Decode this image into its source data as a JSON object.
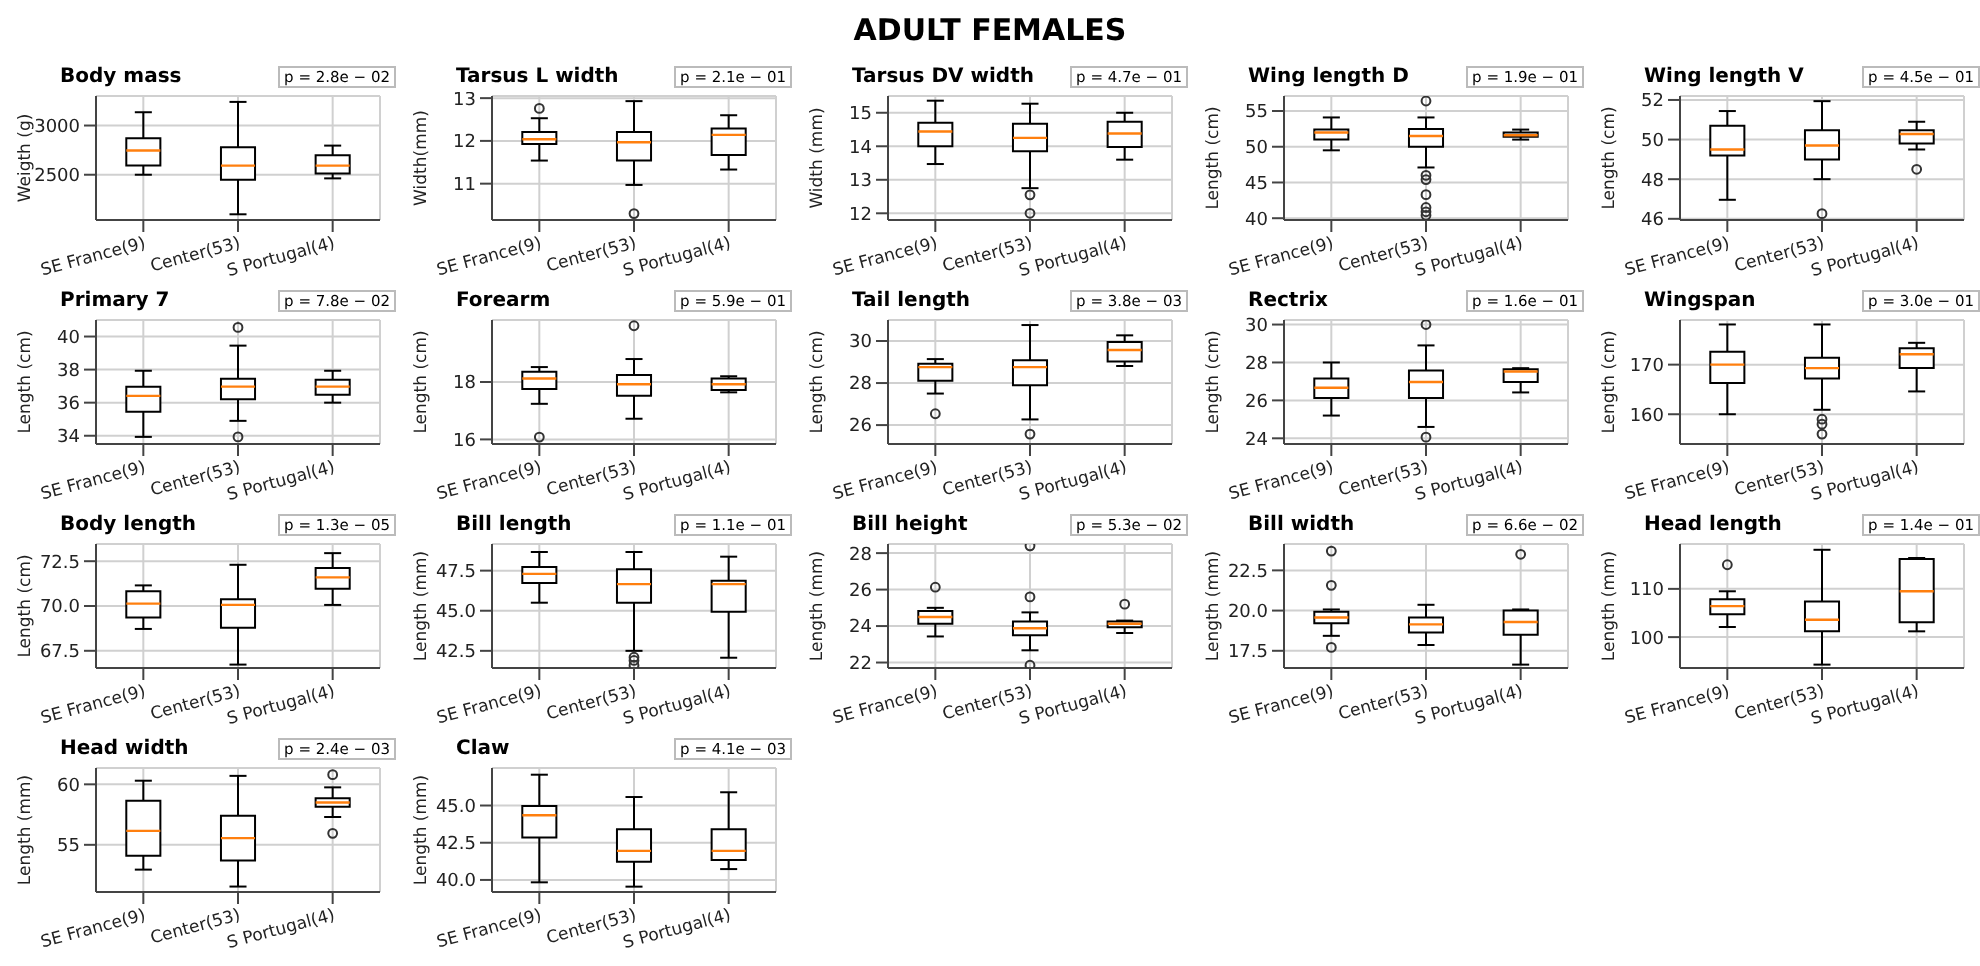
{
  "chart_data": [
    {
      "type": "box",
      "title": "Body mass",
      "ylabel": "Weigth (g)",
      "categories": [
        "SE France(9)",
        "Center(53)",
        "S Portugal(4)"
      ],
      "ylim": [
        2040,
        3300
      ],
      "yticks": [
        2500,
        3000
      ],
      "grid": true,
      "annotations": [
        "p = 2.8e − 02",
        "ADULT FEMALES"
      ],
      "boxes": [
        {
          "low": 2500,
          "q1": 2593,
          "median": 2746,
          "q3": 2870,
          "high": 3135
        },
        {
          "low": 2098,
          "q1": 2450,
          "median": 2593,
          "q3": 2778,
          "high": 3240
        },
        {
          "low": 2463,
          "q1": 2513,
          "median": 2593,
          "q3": 2698,
          "high": 2796
        }
      ]
    },
    {
      "type": "box",
      "title": "Tarsus L width",
      "ylabel": "Width(mm)",
      "categories": [
        "SE France(9)",
        "Center(53)",
        "S Portugal(4)"
      ],
      "ylim": [
        10.15,
        13.05
      ],
      "yticks": [
        11,
        12,
        13
      ],
      "grid": true,
      "annotations": [
        "p = 2.1e − 01"
      ],
      "boxes": [
        {
          "low": 11.54,
          "q1": 11.93,
          "median": 12.04,
          "q3": 12.21,
          "high": 12.53,
          "outliers": [
            12.76
          ]
        },
        {
          "low": 10.97,
          "q1": 11.54,
          "median": 11.97,
          "q3": 12.21,
          "high": 12.93,
          "outliers": [
            10.3
          ]
        },
        {
          "low": 11.33,
          "q1": 11.67,
          "median": 12.14,
          "q3": 12.29,
          "high": 12.6
        }
      ]
    },
    {
      "type": "box",
      "title": "Tarsus DV width",
      "ylabel": "Width (mm)",
      "categories": [
        "SE France(9)",
        "Center(53)",
        "S Portugal(4)"
      ],
      "ylim": [
        11.8,
        15.5
      ],
      "yticks": [
        12,
        13,
        14,
        15
      ],
      "grid": true,
      "annotations": [
        "p = 4.7e − 01"
      ],
      "boxes": [
        {
          "low": 13.47,
          "q1": 14.0,
          "median": 14.44,
          "q3": 14.7,
          "high": 15.36
        },
        {
          "low": 12.75,
          "q1": 13.85,
          "median": 14.25,
          "q3": 14.67,
          "high": 15.27,
          "outliers": [
            12.55,
            12.0
          ]
        },
        {
          "low": 13.6,
          "q1": 13.98,
          "median": 14.38,
          "q3": 14.73,
          "high": 15.0
        }
      ]
    },
    {
      "type": "box",
      "title": "Wing length D",
      "ylabel": "Length (cm)",
      "categories": [
        "SE France(9)",
        "Center(53)",
        "S Portugal(4)"
      ],
      "ylim": [
        39.75,
        57.1
      ],
      "yticks": [
        40,
        45,
        50,
        55
      ],
      "grid": true,
      "annotations": [
        "p = 1.9e − 01"
      ],
      "boxes": [
        {
          "low": 49.5,
          "q1": 51.0,
          "median": 52.0,
          "q3": 52.4,
          "high": 54.1
        },
        {
          "low": 47.1,
          "q1": 50.0,
          "median": 51.5,
          "q3": 52.5,
          "high": 54.1,
          "outliers": [
            56.4,
            46.0,
            45.4,
            43.3,
            41.5,
            40.9,
            40.4
          ]
        },
        {
          "low": 51.0,
          "q1": 51.4,
          "median": 51.6,
          "q3": 52.0,
          "high": 52.4
        }
      ]
    },
    {
      "type": "box",
      "title": "Wing length V",
      "ylabel": "Length (cm)",
      "categories": [
        "SE France(9)",
        "Center(53)",
        "S Portugal(4)"
      ],
      "ylim": [
        45.94,
        52.2
      ],
      "yticks": [
        46,
        48,
        50,
        52
      ],
      "grid": true,
      "annotations": [
        "p = 4.5e − 01"
      ],
      "boxes": [
        {
          "low": 46.96,
          "q1": 49.2,
          "median": 49.5,
          "q3": 50.7,
          "high": 51.44
        },
        {
          "low": 48.0,
          "q1": 49.0,
          "median": 49.7,
          "q3": 50.47,
          "high": 51.94,
          "outliers": [
            46.26
          ]
        },
        {
          "low": 49.5,
          "q1": 49.8,
          "median": 50.28,
          "q3": 50.47,
          "high": 50.9,
          "outliers": [
            48.5
          ]
        }
      ]
    },
    {
      "type": "box",
      "title": "Primary 7",
      "ylabel": "Length (cm)",
      "categories": [
        "SE France(9)",
        "Center(53)",
        "S Portugal(4)"
      ],
      "ylim": [
        33.5,
        41
      ],
      "yticks": [
        34,
        36,
        38,
        40
      ],
      "grid": true,
      "annotations": [
        "p = 7.8e − 02"
      ],
      "boxes": [
        {
          "low": 33.93,
          "q1": 35.45,
          "median": 36.41,
          "q3": 36.97,
          "high": 37.93
        },
        {
          "low": 34.9,
          "q1": 36.2,
          "median": 36.97,
          "q3": 37.45,
          "high": 39.45,
          "outliers": [
            40.55,
            33.93
          ]
        },
        {
          "low": 36.0,
          "q1": 36.48,
          "median": 36.97,
          "q3": 37.38,
          "high": 37.93
        }
      ]
    },
    {
      "type": "box",
      "title": "Forearm",
      "ylabel": "Length (cm)",
      "categories": [
        "SE France(9)",
        "Center(53)",
        "S Portugal(4)"
      ],
      "ylim": [
        15.84,
        20.16
      ],
      "yticks": [
        16,
        18
      ],
      "grid": true,
      "annotations": [
        "p = 5.9e − 01"
      ],
      "boxes": [
        {
          "low": 17.24,
          "q1": 17.76,
          "median": 18.12,
          "q3": 18.36,
          "high": 18.52,
          "outliers": [
            16.08
          ]
        },
        {
          "low": 16.72,
          "q1": 17.52,
          "median": 17.92,
          "q3": 18.24,
          "high": 18.8,
          "outliers": [
            19.96
          ]
        },
        {
          "low": 17.64,
          "q1": 17.72,
          "median": 17.92,
          "q3": 18.12,
          "high": 18.2
        }
      ]
    },
    {
      "type": "box",
      "title": "Tail length",
      "ylabel": "Length (cm)",
      "categories": [
        "SE France(9)",
        "Center(53)",
        "S Portugal(4)"
      ],
      "ylim": [
        25.1,
        31
      ],
      "yticks": [
        26,
        28,
        30
      ],
      "grid": true,
      "annotations": [
        "p = 3.8e − 03"
      ],
      "boxes": [
        {
          "low": 27.5,
          "q1": 28.11,
          "median": 28.76,
          "q3": 28.92,
          "high": 29.14,
          "outliers": [
            26.54
          ]
        },
        {
          "low": 26.27,
          "q1": 27.89,
          "median": 28.76,
          "q3": 29.08,
          "high": 30.76,
          "outliers": [
            25.57
          ]
        },
        {
          "low": 28.81,
          "q1": 29.03,
          "median": 29.57,
          "q3": 29.95,
          "high": 30.27
        }
      ]
    },
    {
      "type": "box",
      "title": "Rectrix",
      "ylabel": "Length (cm)",
      "categories": [
        "SE France(9)",
        "Center(53)",
        "S Portugal(4)"
      ],
      "ylim": [
        23.7,
        30.24
      ],
      "yticks": [
        24,
        26,
        28,
        30
      ],
      "grid": true,
      "annotations": [
        "p = 1.6e − 01"
      ],
      "boxes": [
        {
          "low": 25.2,
          "q1": 26.12,
          "median": 26.67,
          "q3": 27.15,
          "high": 28.0
        },
        {
          "low": 24.6,
          "q1": 26.12,
          "median": 26.97,
          "q3": 27.58,
          "high": 28.9,
          "outliers": [
            30.0,
            24.06
          ]
        },
        {
          "low": 26.42,
          "q1": 26.97,
          "median": 27.52,
          "q3": 27.64,
          "high": 27.7
        }
      ]
    },
    {
      "type": "box",
      "title": "Wingspan",
      "ylabel": "Length (cm)",
      "categories": [
        "SE France(9)",
        "Center(53)",
        "S Portugal(4)"
      ],
      "ylim": [
        154,
        179
      ],
      "yticks": [
        160,
        170
      ],
      "grid": true,
      "annotations": [
        "p = 3.0e − 01"
      ],
      "boxes": [
        {
          "low": 160,
          "q1": 166.3,
          "median": 170,
          "q3": 172.6,
          "high": 178.1
        },
        {
          "low": 160.9,
          "q1": 167.2,
          "median": 169.3,
          "q3": 171.4,
          "high": 178.1,
          "outliers": [
            159,
            158,
            156
          ]
        },
        {
          "low": 164.6,
          "q1": 169.3,
          "median": 172.1,
          "q3": 173.3,
          "high": 174.4
        }
      ]
    },
    {
      "type": "box",
      "title": "Body length",
      "ylabel": "Length (cm)",
      "categories": [
        "SE France(9)",
        "Center(53)",
        "S Portugal(4)"
      ],
      "ylim": [
        66.54,
        73.46
      ],
      "yticks": [
        {
          "value": 67.5,
          "label": "67.5"
        },
        {
          "value": 70,
          "label": "70.0"
        },
        {
          "value": 72.5,
          "label": "72.5"
        }
      ],
      "grid": true,
      "annotations": [
        "p = 1.3e − 05"
      ],
      "boxes": [
        {
          "low": 68.72,
          "q1": 69.36,
          "median": 70.13,
          "q3": 70.83,
          "high": 71.15
        },
        {
          "low": 66.73,
          "q1": 68.78,
          "median": 70.06,
          "q3": 70.38,
          "high": 72.3
        },
        {
          "low": 70.06,
          "q1": 70.96,
          "median": 71.6,
          "q3": 72.12,
          "high": 72.95
        }
      ]
    },
    {
      "type": "box",
      "title": "Bill length",
      "ylabel": "Length (mm)",
      "categories": [
        "SE France(9)",
        "Center(53)",
        "S Portugal(4)"
      ],
      "ylim": [
        41.43,
        49.16
      ],
      "yticks": [
        {
          "value": 42.5,
          "label": "42.5"
        },
        {
          "value": 45,
          "label": "45.0"
        },
        {
          "value": 47.5,
          "label": "47.5"
        }
      ],
      "grid": true,
      "annotations": [
        "p = 1.1e − 01"
      ],
      "boxes": [
        {
          "low": 45.5,
          "q1": 46.73,
          "median": 47.3,
          "q3": 47.73,
          "high": 48.66
        },
        {
          "low": 42.5,
          "q1": 45.5,
          "median": 46.66,
          "q3": 47.59,
          "high": 48.66,
          "outliers": [
            42.1,
            41.9,
            41.6
          ]
        },
        {
          "low": 42.07,
          "q1": 44.93,
          "median": 46.66,
          "q3": 46.87,
          "high": 48.37
        }
      ]
    },
    {
      "type": "box",
      "title": "Bill height",
      "ylabel": "Length (mm)",
      "categories": [
        "SE France(9)",
        "Center(53)",
        "S Portugal(4)"
      ],
      "ylim": [
        21.7,
        28.5
      ],
      "yticks": [
        22,
        24,
        26,
        28
      ],
      "grid": true,
      "annotations": [
        "p = 5.3e − 02"
      ],
      "boxes": [
        {
          "low": 23.43,
          "q1": 24.13,
          "median": 24.5,
          "q3": 24.82,
          "high": 25.0,
          "outliers": [
            26.13
          ]
        },
        {
          "low": 22.67,
          "q1": 23.5,
          "median": 23.88,
          "q3": 24.25,
          "high": 24.75,
          "outliers": [
            28.4,
            25.6,
            21.85
          ]
        },
        {
          "low": 23.62,
          "q1": 23.94,
          "median": 24.13,
          "q3": 24.25,
          "high": 24.3,
          "outliers": [
            25.2
          ]
        }
      ]
    },
    {
      "type": "box",
      "title": "Bill width",
      "ylabel": "Length (mm)",
      "categories": [
        "SE France(9)",
        "Center(53)",
        "S Portugal(4)"
      ],
      "ylim": [
        16.43,
        24.14
      ],
      "yticks": [
        {
          "value": 17.5,
          "label": "17.5"
        },
        {
          "value": 20,
          "label": "20.0"
        },
        {
          "value": 22.5,
          "label": "22.5"
        }
      ],
      "grid": true,
      "annotations": [
        "p = 6.6e − 02"
      ],
      "boxes": [
        {
          "low": 18.43,
          "q1": 19.21,
          "median": 19.57,
          "q3": 19.93,
          "high": 20.07,
          "outliers": [
            23.7,
            21.57,
            17.71
          ]
        },
        {
          "low": 17.86,
          "q1": 18.64,
          "median": 19.14,
          "q3": 19.57,
          "high": 20.36
        },
        {
          "low": 16.64,
          "q1": 18.5,
          "median": 19.29,
          "q3": 20.0,
          "high": 20.07,
          "outliers": [
            23.5
          ]
        }
      ]
    },
    {
      "type": "box",
      "title": "Head length",
      "ylabel": "Length (mm)",
      "categories": [
        "SE France(9)",
        "Center(53)",
        "S Portugal(4)"
      ],
      "ylim": [
        93.6,
        119.3
      ],
      "yticks": [
        100,
        110
      ],
      "grid": true,
      "annotations": [
        "p = 1.4e − 01"
      ],
      "boxes": [
        {
          "low": 102.1,
          "q1": 104.76,
          "median": 106.43,
          "q3": 107.86,
          "high": 109.5,
          "outliers": [
            115
          ]
        },
        {
          "low": 94.3,
          "q1": 101.2,
          "median": 103.6,
          "q3": 107.4,
          "high": 118.1
        },
        {
          "low": 101.2,
          "q1": 103.1,
          "median": 109.5,
          "q3": 116.2,
          "high": 116.4
        }
      ]
    },
    {
      "type": "box",
      "title": "Head width",
      "ylabel": "Length (mm)",
      "categories": [
        "SE France(9)",
        "Center(53)",
        "S Portugal(4)"
      ],
      "ylim": [
        51.1,
        61.35
      ],
      "yticks": [
        55,
        60
      ],
      "grid": true,
      "annotations": [
        "p = 2.4e − 03"
      ],
      "boxes": [
        {
          "low": 52.95,
          "q1": 54.1,
          "median": 56.15,
          "q3": 58.65,
          "high": 60.3
        },
        {
          "low": 51.55,
          "q1": 53.7,
          "median": 55.55,
          "q3": 57.4,
          "high": 60.7
        },
        {
          "low": 57.3,
          "q1": 58.15,
          "median": 58.5,
          "q3": 58.85,
          "high": 59.75,
          "outliers": [
            60.8,
            55.95
          ]
        }
      ]
    },
    {
      "type": "box",
      "title": "Claw",
      "ylabel": "Length (mm)",
      "categories": [
        "SE France(9)",
        "Center(53)",
        "S Portugal(4)"
      ],
      "ylim": [
        39.19,
        47.52
      ],
      "yticks": [
        {
          "value": 40,
          "label": "40.0"
        },
        {
          "value": 42.5,
          "label": "42.5"
        },
        {
          "value": 45,
          "label": "45.0"
        }
      ],
      "grid": true,
      "annotations": [
        "p = 4.1e − 03"
      ],
      "boxes": [
        {
          "low": 39.84,
          "q1": 42.85,
          "median": 44.35,
          "q3": 44.96,
          "high": 47.07
        },
        {
          "low": 39.55,
          "q1": 41.22,
          "median": 41.95,
          "q3": 43.41,
          "high": 45.57
        },
        {
          "low": 40.73,
          "q1": 41.34,
          "median": 41.95,
          "q3": 43.41,
          "high": 45.89
        }
      ]
    }
  ]
}
